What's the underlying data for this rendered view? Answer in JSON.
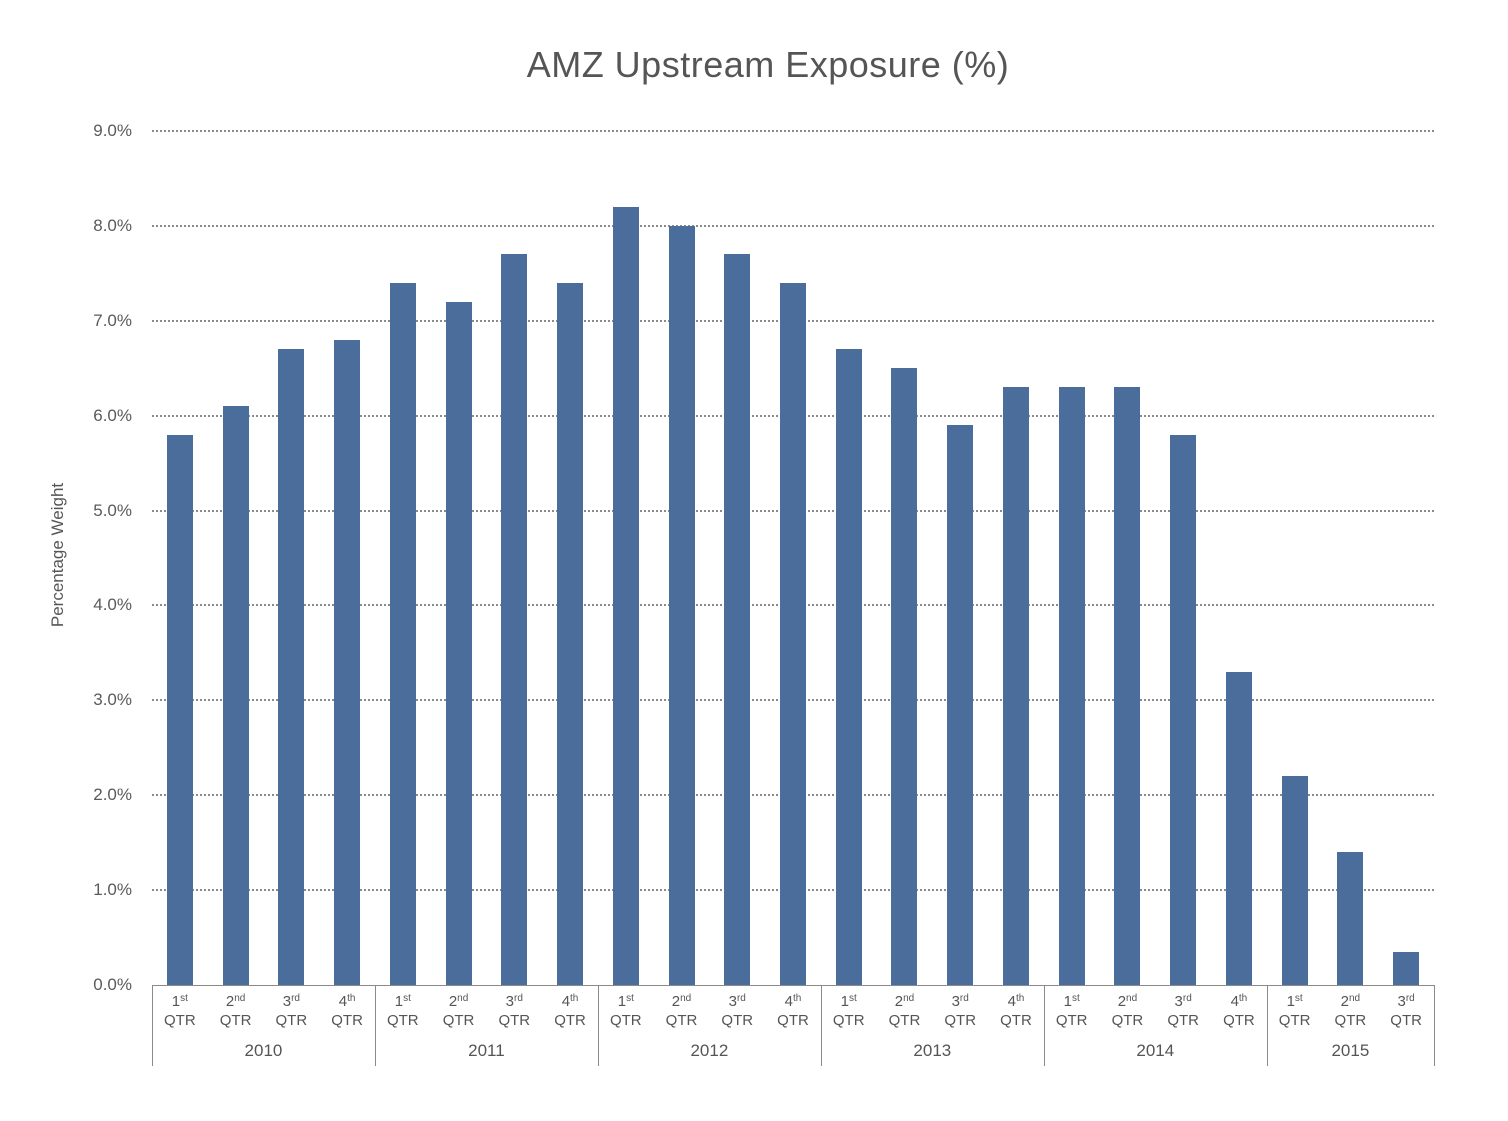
{
  "chart_data": {
    "type": "bar",
    "title": "AMZ Upstream Exposure (%)",
    "xlabel": "",
    "ylabel": "Percentage Weight",
    "ylim": [
      0,
      9
    ],
    "yticks": [
      "0.0%",
      "1.0%",
      "2.0%",
      "3.0%",
      "4.0%",
      "5.0%",
      "6.0%",
      "7.0%",
      "8.0%",
      "9.0%"
    ],
    "grid": "horizontal dotted",
    "legend": null,
    "bar_color": "#4b6d9b",
    "groups": [
      {
        "year": "2010",
        "quarters": [
          {
            "n": "1",
            "sup": "st"
          },
          {
            "n": "2",
            "sup": "nd"
          },
          {
            "n": "3",
            "sup": "rd"
          },
          {
            "n": "4",
            "sup": "th"
          }
        ]
      },
      {
        "year": "2011",
        "quarters": [
          {
            "n": "1",
            "sup": "st"
          },
          {
            "n": "2",
            "sup": "nd"
          },
          {
            "n": "3",
            "sup": "rd"
          },
          {
            "n": "4",
            "sup": "th"
          }
        ]
      },
      {
        "year": "2012",
        "quarters": [
          {
            "n": "1",
            "sup": "st"
          },
          {
            "n": "2",
            "sup": "nd"
          },
          {
            "n": "3",
            "sup": "rd"
          },
          {
            "n": "4",
            "sup": "th"
          }
        ]
      },
      {
        "year": "2013",
        "quarters": [
          {
            "n": "1",
            "sup": "st"
          },
          {
            "n": "2",
            "sup": "nd"
          },
          {
            "n": "3",
            "sup": "rd"
          },
          {
            "n": "4",
            "sup": "th"
          }
        ]
      },
      {
        "year": "2014",
        "quarters": [
          {
            "n": "1",
            "sup": "st"
          },
          {
            "n": "2",
            "sup": "nd"
          },
          {
            "n": "3",
            "sup": "rd"
          },
          {
            "n": "4",
            "sup": "th"
          }
        ]
      },
      {
        "year": "2015",
        "quarters": [
          {
            "n": "1",
            "sup": "st"
          },
          {
            "n": "2",
            "sup": "nd"
          },
          {
            "n": "3",
            "sup": "rd"
          }
        ]
      }
    ],
    "quarter_suffix": "QTR",
    "categories": [
      "2010 Q1",
      "2010 Q2",
      "2010 Q3",
      "2010 Q4",
      "2011 Q1",
      "2011 Q2",
      "2011 Q3",
      "2011 Q4",
      "2012 Q1",
      "2012 Q2",
      "2012 Q3",
      "2012 Q4",
      "2013 Q1",
      "2013 Q2",
      "2013 Q3",
      "2013 Q4",
      "2014 Q1",
      "2014 Q2",
      "2014 Q3",
      "2014 Q4",
      "2015 Q1",
      "2015 Q2",
      "2015 Q3"
    ],
    "values": [
      5.8,
      6.1,
      6.7,
      6.8,
      7.4,
      7.2,
      7.7,
      7.4,
      8.2,
      8.0,
      7.7,
      7.4,
      6.7,
      6.5,
      5.9,
      6.3,
      6.3,
      6.3,
      5.8,
      3.3,
      2.2,
      1.4,
      0.35
    ],
    "units": "%"
  }
}
